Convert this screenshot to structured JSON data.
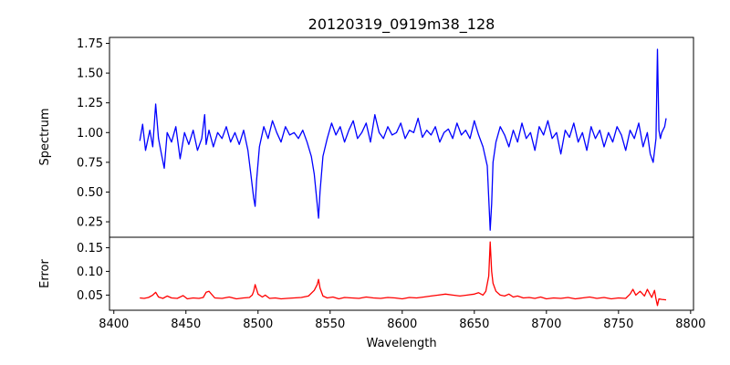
{
  "chart_data": [
    {
      "type": "line",
      "title": "20120319_0919m38_128",
      "xlabel": "",
      "ylabel": "Spectrum",
      "xlim": [
        8397,
        8802
      ],
      "ylim": [
        0.12,
        1.8
      ],
      "yticks": [
        0.25,
        0.5,
        0.75,
        1.0,
        1.25,
        1.5,
        1.75
      ],
      "ytick_labels": [
        "0.25",
        "0.50",
        "0.75",
        "1.00",
        "1.25",
        "1.50",
        "1.75"
      ],
      "color": "#0000ff",
      "series": [
        {
          "name": "Spectrum",
          "x": [
            8418,
            8420,
            8422,
            8425,
            8427,
            8429,
            8431,
            8433,
            8435,
            8437,
            8440,
            8443,
            8446,
            8449,
            8452,
            8455,
            8458,
            8461,
            8463,
            8464,
            8466,
            8469,
            8472,
            8475,
            8478,
            8481,
            8484,
            8487,
            8490,
            8493,
            8495,
            8497,
            8498,
            8499,
            8501,
            8504,
            8507,
            8510,
            8513,
            8516,
            8519,
            8522,
            8525,
            8528,
            8531,
            8534,
            8537,
            8539,
            8541,
            8542,
            8543,
            8545,
            8548,
            8551,
            8554,
            8557,
            8560,
            8563,
            8566,
            8569,
            8572,
            8575,
            8578,
            8581,
            8584,
            8587,
            8590,
            8593,
            8596,
            8599,
            8602,
            8605,
            8608,
            8611,
            8614,
            8617,
            8620,
            8623,
            8626,
            8629,
            8632,
            8635,
            8638,
            8641,
            8644,
            8647,
            8650,
            8653,
            8656,
            8659,
            8660,
            8661,
            8662,
            8663,
            8665,
            8668,
            8671,
            8674,
            8677,
            8680,
            8683,
            8686,
            8689,
            8692,
            8695,
            8698,
            8701,
            8704,
            8707,
            8710,
            8713,
            8716,
            8719,
            8722,
            8725,
            8728,
            8731,
            8734,
            8737,
            8740,
            8743,
            8746,
            8749,
            8752,
            8755,
            8758,
            8761,
            8764,
            8767,
            8770,
            8772,
            8774,
            8776,
            8777,
            8778,
            8779,
            8780,
            8782,
            8783
          ],
          "y": [
            0.93,
            1.07,
            0.85,
            1.02,
            0.88,
            1.24,
            0.95,
            0.82,
            0.7,
            1.0,
            0.92,
            1.05,
            0.78,
            1.0,
            0.9,
            1.02,
            0.85,
            0.95,
            1.15,
            0.9,
            1.02,
            0.88,
            1.0,
            0.95,
            1.05,
            0.92,
            1.0,
            0.9,
            1.02,
            0.85,
            0.65,
            0.45,
            0.38,
            0.6,
            0.88,
            1.05,
            0.95,
            1.1,
            1.0,
            0.92,
            1.05,
            0.98,
            1.0,
            0.95,
            1.02,
            0.92,
            0.8,
            0.65,
            0.4,
            0.28,
            0.5,
            0.8,
            0.95,
            1.08,
            0.98,
            1.05,
            0.92,
            1.02,
            1.1,
            0.95,
            1.0,
            1.08,
            0.92,
            1.15,
            1.0,
            0.95,
            1.05,
            0.98,
            1.0,
            1.08,
            0.95,
            1.02,
            1.0,
            1.12,
            0.96,
            1.02,
            0.98,
            1.05,
            0.92,
            1.0,
            1.03,
            0.95,
            1.08,
            0.98,
            1.02,
            0.95,
            1.1,
            0.98,
            0.88,
            0.72,
            0.45,
            0.18,
            0.4,
            0.75,
            0.92,
            1.05,
            0.98,
            0.88,
            1.02,
            0.92,
            1.08,
            0.95,
            1.0,
            0.85,
            1.05,
            0.98,
            1.1,
            0.95,
            1.0,
            0.82,
            1.02,
            0.96,
            1.08,
            0.92,
            1.0,
            0.85,
            1.05,
            0.95,
            1.02,
            0.88,
            1.0,
            0.92,
            1.05,
            0.98,
            0.85,
            1.02,
            0.95,
            1.08,
            0.88,
            1.0,
            0.82,
            0.75,
            0.95,
            1.7,
            1.02,
            0.95,
            1.0,
            1.05,
            1.12
          ]
        }
      ]
    },
    {
      "type": "line",
      "title": "",
      "xlabel": "Wavelength",
      "ylabel": "Error",
      "xlim": [
        8397,
        8802
      ],
      "ylim": [
        0.018,
        0.172
      ],
      "yticks": [
        0.05,
        0.1,
        0.15
      ],
      "ytick_labels": [
        "0.05",
        "0.10",
        "0.15"
      ],
      "xticks": [
        8400,
        8450,
        8500,
        8550,
        8600,
        8650,
        8700,
        8750,
        8800
      ],
      "xtick_labels": [
        "8400",
        "8450",
        "8500",
        "8550",
        "8600",
        "8650",
        "8700",
        "8750",
        "8800"
      ],
      "color": "#ff0000",
      "series": [
        {
          "name": "Error",
          "x": [
            8418,
            8421,
            8424,
            8427,
            8429,
            8431,
            8434,
            8437,
            8440,
            8444,
            8448,
            8451,
            8455,
            8459,
            8462,
            8464,
            8466,
            8470,
            8475,
            8480,
            8485,
            8490,
            8494,
            8496,
            8497,
            8498,
            8500,
            8503,
            8505,
            8508,
            8512,
            8516,
            8520,
            8525,
            8530,
            8535,
            8539,
            8541,
            8542,
            8543,
            8545,
            8548,
            8552,
            8556,
            8560,
            8565,
            8570,
            8575,
            8580,
            8585,
            8590,
            8595,
            8600,
            8605,
            8610,
            8615,
            8620,
            8625,
            8630,
            8635,
            8640,
            8645,
            8650,
            8653,
            8656,
            8658,
            8660,
            8661,
            8662,
            8663,
            8665,
            8668,
            8671,
            8674,
            8677,
            8680,
            8684,
            8688,
            8692,
            8696,
            8700,
            8705,
            8710,
            8715,
            8720,
            8725,
            8730,
            8735,
            8740,
            8745,
            8750,
            8755,
            8758,
            8760,
            8762,
            8765,
            8768,
            8770,
            8773,
            8775,
            8776,
            8777,
            8778,
            8780,
            8783
          ],
          "y": [
            0.044,
            0.043,
            0.045,
            0.05,
            0.056,
            0.046,
            0.043,
            0.048,
            0.044,
            0.043,
            0.049,
            0.042,
            0.044,
            0.043,
            0.045,
            0.056,
            0.058,
            0.044,
            0.043,
            0.046,
            0.042,
            0.044,
            0.045,
            0.05,
            0.058,
            0.072,
            0.052,
            0.046,
            0.05,
            0.043,
            0.044,
            0.042,
            0.043,
            0.044,
            0.045,
            0.048,
            0.06,
            0.072,
            0.083,
            0.065,
            0.048,
            0.044,
            0.046,
            0.042,
            0.045,
            0.044,
            0.043,
            0.046,
            0.044,
            0.043,
            0.045,
            0.044,
            0.042,
            0.045,
            0.044,
            0.046,
            0.048,
            0.05,
            0.052,
            0.05,
            0.048,
            0.05,
            0.052,
            0.055,
            0.05,
            0.058,
            0.09,
            0.162,
            0.1,
            0.075,
            0.058,
            0.05,
            0.048,
            0.052,
            0.046,
            0.048,
            0.044,
            0.045,
            0.043,
            0.046,
            0.042,
            0.044,
            0.043,
            0.045,
            0.042,
            0.044,
            0.046,
            0.043,
            0.045,
            0.042,
            0.044,
            0.043,
            0.052,
            0.062,
            0.05,
            0.058,
            0.048,
            0.062,
            0.045,
            0.06,
            0.042,
            0.028,
            0.042,
            0.041,
            0.04
          ]
        }
      ]
    }
  ]
}
